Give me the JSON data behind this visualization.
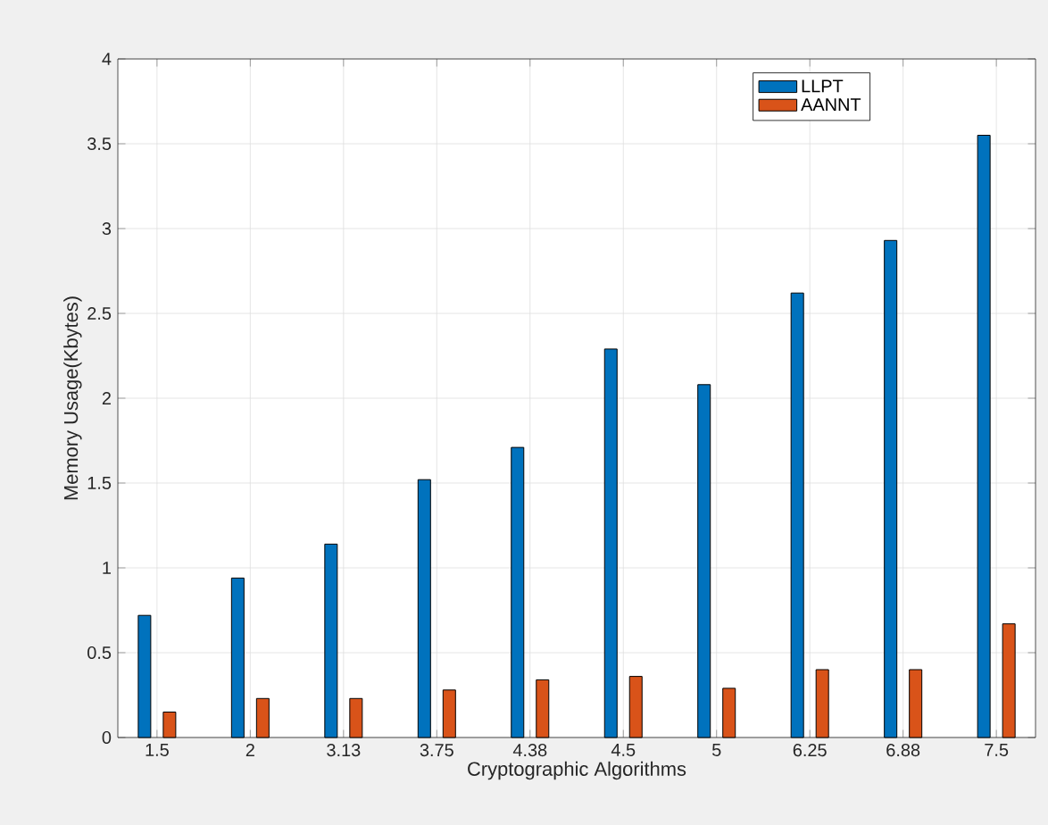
{
  "chart_data": {
    "type": "bar",
    "xlabel": "Cryptographic Algorithms",
    "ylabel": "Memory Usage(Kbytes)",
    "categories": [
      "1.5",
      "2",
      "3.13",
      "3.75",
      "4.38",
      "4.5",
      "5",
      "6.25",
      "6.88",
      "7.5"
    ],
    "series": [
      {
        "name": "LLPT",
        "color": "#0072bd",
        "values": [
          0.72,
          0.94,
          1.14,
          1.52,
          1.71,
          2.29,
          2.08,
          2.62,
          2.93,
          3.55
        ]
      },
      {
        "name": "AANNT",
        "color": "#d95319",
        "values": [
          0.15,
          0.23,
          0.23,
          0.28,
          0.34,
          0.36,
          0.29,
          0.4,
          0.4,
          0.67
        ]
      }
    ],
    "ylim": [
      0,
      4
    ],
    "yticks": [
      0,
      0.5,
      1,
      1.5,
      2,
      2.5,
      3,
      3.5,
      4
    ],
    "grid": true,
    "legend": "top right"
  }
}
